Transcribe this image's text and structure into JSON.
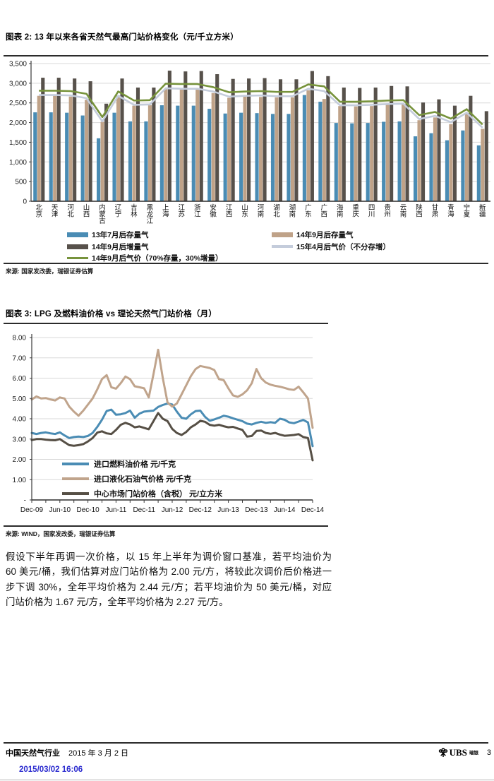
{
  "chart_data": [
    {
      "type": "bar",
      "title": "图表 2: 13 年以来各省天然气最高门站价格变化（元/千立方米）",
      "source": "来源: 国家发改委，瑞银证券估算",
      "ylabel": "",
      "ylim": [
        0,
        3500
      ],
      "ytick_step": 500,
      "grid": true,
      "legend_position": "bottom",
      "legend_rows": [
        [
          0,
          1
        ],
        [
          2,
          4
        ],
        [
          3
        ]
      ],
      "categories": [
        "北京",
        "天津",
        "河北",
        "山西",
        "内蒙古",
        "辽宁",
        "吉林",
        "黑龙江",
        "上海",
        "江苏",
        "浙江",
        "安徽",
        "江西",
        "山东",
        "河南",
        "湖北",
        "湖南",
        "广东",
        "广西",
        "海南",
        "重庆",
        "四川",
        "贵州",
        "云南",
        "陕西",
        "甘肃",
        "青海",
        "宁夏",
        "新疆"
      ],
      "series": [
        {
          "name": "13年7月后存量气",
          "type": "bar",
          "color": "#4A8CB4",
          "values": [
            2260,
            2260,
            2250,
            2180,
            1600,
            2250,
            2030,
            2030,
            2440,
            2430,
            2430,
            2350,
            2230,
            2250,
            2240,
            2220,
            2220,
            2700,
            2530,
            1990,
            1980,
            1990,
            2020,
            2030,
            1650,
            1730,
            1550,
            1800,
            1420
          ]
        },
        {
          "name": "14年9月后存量气",
          "type": "bar",
          "color": "#BFA288",
          "values": [
            2680,
            2680,
            2660,
            2580,
            2020,
            2690,
            2430,
            2440,
            2860,
            2840,
            2850,
            2750,
            2630,
            2660,
            2650,
            2640,
            2640,
            2820,
            2600,
            2420,
            2410,
            2420,
            2460,
            2460,
            2060,
            2130,
            1960,
            2230,
            1840
          ]
        },
        {
          "name": "14年9月后增量气",
          "type": "bar",
          "color": "#57514B",
          "values": [
            3140,
            3140,
            3120,
            3050,
            2480,
            3120,
            2890,
            2890,
            3320,
            3300,
            3310,
            3230,
            3110,
            3120,
            3130,
            3100,
            3100,
            3310,
            3180,
            2890,
            2880,
            2890,
            2930,
            2920,
            2510,
            2590,
            2430,
            2680,
            2290
          ]
        },
        {
          "name": "14年9月后气价（70%存量，30%增量）",
          "type": "line",
          "color": "#77933C",
          "values": [
            2810,
            2810,
            2800,
            2730,
            2140,
            2790,
            2560,
            2570,
            2990,
            2980,
            2980,
            2900,
            2770,
            2790,
            2800,
            2780,
            2780,
            2970,
            2920,
            2530,
            2530,
            2540,
            2560,
            2570,
            2190,
            2270,
            2100,
            2340,
            1950
          ]
        },
        {
          "name": "15年4月后气价（不分存增）",
          "type": "line",
          "color": "#C4CCDB",
          "values": [
            2700,
            2700,
            2690,
            2620,
            2030,
            2680,
            2450,
            2460,
            2870,
            2860,
            2860,
            2790,
            2660,
            2680,
            2690,
            2670,
            2670,
            2860,
            2800,
            2440,
            2440,
            2450,
            2470,
            2480,
            2090,
            2170,
            2010,
            2250,
            1870
          ]
        }
      ]
    },
    {
      "type": "line",
      "title": "图表 3: LPG 及燃料油价格 vs 理论天然气门站价格（月）",
      "source": "来源: WIND，国家发改委，瑞银证券估算",
      "ylim": [
        0,
        8
      ],
      "ytick_step": 1,
      "zero_tick_label": "-",
      "grid": true,
      "legend_position": "inside-bottom-left",
      "x_tick_labels": [
        "Dec-09",
        "Jun-10",
        "Dec-10",
        "Jun-11",
        "Dec-11",
        "Jun-12",
        "Dec-12",
        "Jun-13",
        "Dec-13",
        "Jun-14",
        "Dec-14"
      ],
      "x_tick_every": 6,
      "months": 61,
      "series": [
        {
          "name": "进口燃料油价格 元/千克",
          "color": "#4A8CB4",
          "values": [
            3.3,
            3.25,
            3.3,
            3.33,
            3.28,
            3.25,
            3.33,
            3.18,
            3.05,
            3.1,
            3.12,
            3.1,
            3.15,
            3.3,
            3.6,
            3.95,
            4.38,
            4.45,
            4.2,
            4.22,
            4.28,
            4.4,
            4.05,
            4.25,
            4.35,
            4.38,
            4.4,
            4.58,
            4.68,
            4.75,
            4.7,
            4.35,
            4.05,
            4.0,
            4.22,
            4.38,
            4.4,
            4.1,
            3.9,
            3.97,
            4.05,
            4.15,
            4.1,
            4.02,
            3.95,
            3.88,
            3.76,
            3.72,
            3.8,
            3.85,
            3.8,
            3.83,
            3.8,
            4.0,
            3.95,
            3.82,
            3.78,
            3.86,
            3.94,
            3.82,
            2.65
          ]
        },
        {
          "name": "进口液化石油气价格 元/千克",
          "color": "#C0A48C",
          "values": [
            4.95,
            5.1,
            5.0,
            5.02,
            4.95,
            4.9,
            5.05,
            5.0,
            4.6,
            4.35,
            4.15,
            4.4,
            4.7,
            5.0,
            5.45,
            5.95,
            6.15,
            5.55,
            5.48,
            5.75,
            6.08,
            5.95,
            5.6,
            5.55,
            5.5,
            5.05,
            6.2,
            7.4,
            6.0,
            4.8,
            4.6,
            4.75,
            5.2,
            5.65,
            6.1,
            6.45,
            6.6,
            6.55,
            6.5,
            6.4,
            5.95,
            5.9,
            5.5,
            5.15,
            5.08,
            5.2,
            5.4,
            5.75,
            6.45,
            6.0,
            5.78,
            5.68,
            5.62,
            5.58,
            5.52,
            5.45,
            5.42,
            5.58,
            5.3,
            5.0,
            3.55
          ]
        },
        {
          "name": "中心市场门站价格（含税） 元/立方米",
          "color": "#564F45",
          "values": [
            2.95,
            3.0,
            3.0,
            2.97,
            2.95,
            2.94,
            3.0,
            2.85,
            2.7,
            2.67,
            2.7,
            2.75,
            2.88,
            3.05,
            3.32,
            3.38,
            3.28,
            3.25,
            3.45,
            3.7,
            3.8,
            3.72,
            3.58,
            3.62,
            3.55,
            3.48,
            3.88,
            4.28,
            4.0,
            3.88,
            3.5,
            3.3,
            3.2,
            3.35,
            3.58,
            3.72,
            3.9,
            3.85,
            3.7,
            3.66,
            3.7,
            3.63,
            3.58,
            3.6,
            3.52,
            3.45,
            3.12,
            3.15,
            3.4,
            3.42,
            3.3,
            3.26,
            3.3,
            3.22,
            3.16,
            3.18,
            3.2,
            3.24,
            3.1,
            3.05,
            1.95
          ]
        }
      ]
    }
  ],
  "body_text": {
    "lines": [
      "假设下半年再调一次价格，以 15 年上半年为调价窗口基准，若平均油价为",
      "60 美元/桶，我们估算对应门站价格为 2.00 元/方，将较此次调价后价格进一",
      "步下调 30%，全年平均价格为 2.44 元/方；若平均油价为 50 美元/桶，对应",
      "门站价格为 1.67 元/方，全年平均价格为 2.27 元/方。"
    ]
  },
  "footer": {
    "industry": "中国天然气行业",
    "date": "2015 年 3 月 2 日",
    "brand": "UBS",
    "brand_cn": "瑞银",
    "page": "3",
    "timestamp": "2015/03/02 16:06"
  }
}
